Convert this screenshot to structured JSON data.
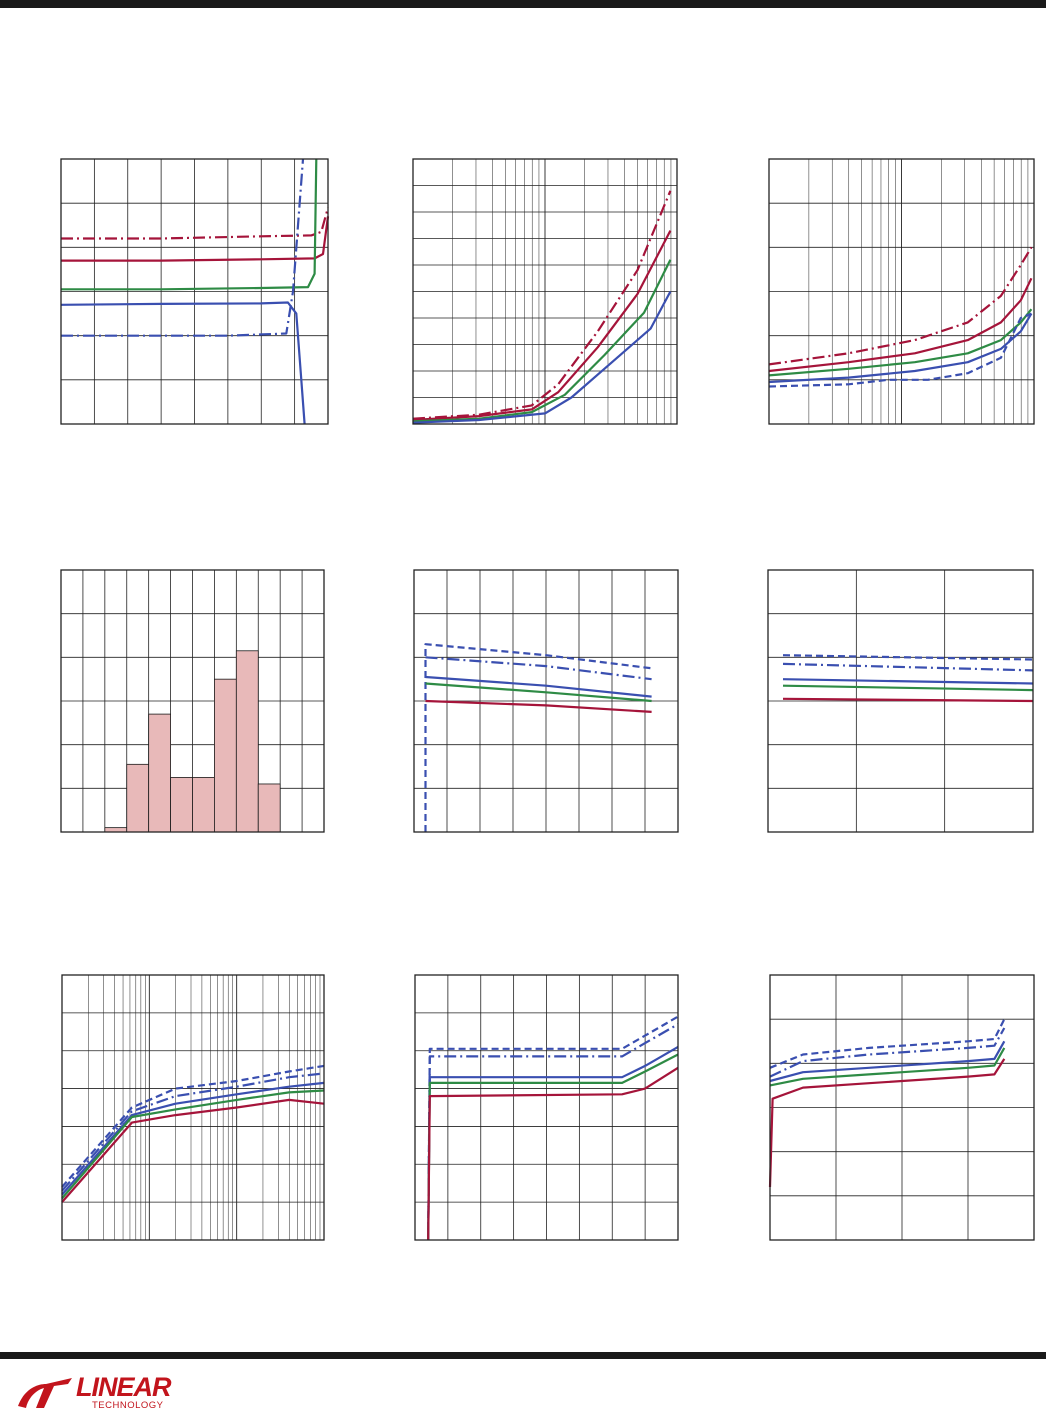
{
  "page": {
    "brand": {
      "name": "LINEAR",
      "subtitle": "TECHNOLOGY"
    }
  },
  "colors": {
    "red": "#a5143a",
    "green": "#2e8b45",
    "blue": "#3a4fb0",
    "grid": "#222222",
    "bar_fill": "#e8b9b9",
    "bar_edge": "#1a1a1a"
  },
  "chart_data": [
    {
      "type": "line",
      "grid": "linear",
      "xdivs": 8,
      "ydivs": 6,
      "series": [
        {
          "color": "red",
          "style": "dashdot",
          "points": [
            [
              0,
              4.2
            ],
            [
              3,
              4.2
            ],
            [
              6,
              4.25
            ],
            [
              7.5,
              4.27
            ],
            [
              7.8,
              4.35
            ],
            [
              8,
              4.9
            ]
          ]
        },
        {
          "color": "red",
          "style": "solid",
          "points": [
            [
              0,
              3.7
            ],
            [
              3,
              3.7
            ],
            [
              6,
              3.73
            ],
            [
              7.6,
              3.75
            ],
            [
              7.85,
              3.85
            ],
            [
              8,
              4.7
            ]
          ]
        },
        {
          "color": "green",
          "style": "solid",
          "points": [
            [
              0,
              3.05
            ],
            [
              3,
              3.05
            ],
            [
              6,
              3.08
            ],
            [
              7.4,
              3.1
            ],
            [
              7.6,
              3.4
            ],
            [
              7.65,
              6
            ]
          ]
        },
        {
          "color": "blue",
          "style": "solid",
          "points": [
            [
              0,
              2.7
            ],
            [
              3,
              2.72
            ],
            [
              6,
              2.73
            ],
            [
              6.8,
              2.75
            ],
            [
              7.05,
              2.5
            ],
            [
              7.2,
              1
            ],
            [
              7.3,
              0
            ]
          ]
        },
        {
          "color": "blue",
          "style": "dashdot",
          "points": [
            [
              0,
              2
            ],
            [
              3,
              2
            ],
            [
              5,
              2
            ],
            [
              6.75,
              2.05
            ],
            [
              6.95,
              3
            ],
            [
              7.1,
              4.5
            ],
            [
              7.25,
              6
            ]
          ]
        }
      ]
    },
    {
      "type": "line",
      "grid": "log",
      "decades": 2,
      "ydivs": 10,
      "series": [
        {
          "color": "red",
          "style": "dashdot",
          "points": [
            [
              0,
              0.2
            ],
            [
              0.5,
              0.35
            ],
            [
              0.9,
              0.7
            ],
            [
              1.1,
              1.5
            ],
            [
              1.4,
              3.5
            ],
            [
              1.7,
              5.8
            ],
            [
              1.95,
              8.8
            ]
          ]
        },
        {
          "color": "red",
          "style": "solid",
          "points": [
            [
              0,
              0.15
            ],
            [
              0.5,
              0.3
            ],
            [
              0.9,
              0.55
            ],
            [
              1.1,
              1.2
            ],
            [
              1.4,
              2.9
            ],
            [
              1.7,
              4.9
            ],
            [
              1.95,
              7.3
            ]
          ]
        },
        {
          "color": "green",
          "style": "solid",
          "points": [
            [
              0,
              0.1
            ],
            [
              0.5,
              0.2
            ],
            [
              0.9,
              0.45
            ],
            [
              1.15,
              1.1
            ],
            [
              1.45,
              2.6
            ],
            [
              1.75,
              4.2
            ],
            [
              1.95,
              6.2
            ]
          ]
        },
        {
          "color": "blue",
          "style": "solid",
          "points": [
            [
              0,
              0.05
            ],
            [
              0.5,
              0.15
            ],
            [
              1.0,
              0.4
            ],
            [
              1.2,
              1.0
            ],
            [
              1.5,
              2.3
            ],
            [
              1.8,
              3.6
            ],
            [
              1.95,
              5.0
            ]
          ]
        }
      ]
    },
    {
      "type": "line",
      "grid": "log",
      "decades": 2,
      "ydivs": 6,
      "series": [
        {
          "color": "red",
          "style": "dashdot",
          "points": [
            [
              0,
              1.35
            ],
            [
              0.6,
              1.6
            ],
            [
              1.1,
              1.9
            ],
            [
              1.5,
              2.3
            ],
            [
              1.75,
              2.9
            ],
            [
              1.9,
              3.6
            ],
            [
              1.98,
              4.0
            ]
          ]
        },
        {
          "color": "red",
          "style": "solid",
          "points": [
            [
              0,
              1.2
            ],
            [
              0.6,
              1.4
            ],
            [
              1.1,
              1.6
            ],
            [
              1.5,
              1.9
            ],
            [
              1.75,
              2.3
            ],
            [
              1.9,
              2.8
            ],
            [
              1.98,
              3.3
            ]
          ]
        },
        {
          "color": "green",
          "style": "solid",
          "points": [
            [
              0,
              1.1
            ],
            [
              0.6,
              1.25
            ],
            [
              1.1,
              1.4
            ],
            [
              1.5,
              1.6
            ],
            [
              1.75,
              1.9
            ],
            [
              1.9,
              2.3
            ],
            [
              1.98,
              2.6
            ]
          ]
        },
        {
          "color": "blue",
          "style": "solid",
          "points": [
            [
              0,
              0.95
            ],
            [
              0.6,
              1.05
            ],
            [
              1.1,
              1.2
            ],
            [
              1.5,
              1.4
            ],
            [
              1.75,
              1.7
            ],
            [
              1.9,
              2.1
            ],
            [
              1.98,
              2.5
            ]
          ]
        },
        {
          "color": "blue",
          "style": "dashed",
          "points": [
            [
              0,
              0.85
            ],
            [
              0.6,
              0.9
            ],
            [
              0.9,
              1.0
            ],
            [
              1.2,
              1.0
            ],
            [
              1.5,
              1.15
            ],
            [
              1.75,
              1.5
            ],
            [
              1.9,
              2.4
            ],
            [
              1.98,
              2.5
            ]
          ]
        }
      ]
    },
    {
      "type": "bar",
      "xdivs": 12,
      "ydivs": 6,
      "ymax": 6,
      "bars": [
        [
          2,
          0.1
        ],
        [
          3,
          1.55
        ],
        [
          4,
          2.7
        ],
        [
          5,
          1.25
        ],
        [
          6,
          1.25
        ],
        [
          7,
          3.5
        ],
        [
          8,
          4.15
        ],
        [
          9,
          1.1
        ]
      ]
    },
    {
      "type": "line",
      "grid": "linear",
      "xdivs": 8,
      "ydivs": 6,
      "series": [
        {
          "color": "blue",
          "style": "dashed",
          "points": [
            [
              0.35,
              0
            ],
            [
              0.35,
              4.3
            ],
            [
              4,
              4.05
            ],
            [
              7.2,
              3.75
            ]
          ]
        },
        {
          "color": "blue",
          "style": "dashdot",
          "points": [
            [
              0.35,
              4.0
            ],
            [
              4,
              3.8
            ],
            [
              7.2,
              3.5
            ]
          ]
        },
        {
          "color": "blue",
          "style": "solid",
          "points": [
            [
              0.35,
              3.55
            ],
            [
              4,
              3.35
            ],
            [
              7.2,
              3.1
            ]
          ]
        },
        {
          "color": "green",
          "style": "solid",
          "points": [
            [
              0.35,
              3.4
            ],
            [
              4,
              3.2
            ],
            [
              7.2,
              3.0
            ]
          ]
        },
        {
          "color": "red",
          "style": "solid",
          "points": [
            [
              0.35,
              3.0
            ],
            [
              4,
              2.9
            ],
            [
              7.2,
              2.75
            ]
          ]
        }
      ]
    },
    {
      "type": "line",
      "grid": "linear",
      "xdivs": 3,
      "ydivs": 6,
      "series": [
        {
          "color": "blue",
          "style": "dashed",
          "points": [
            [
              0.17,
              4.05
            ],
            [
              3,
              3.95
            ]
          ]
        },
        {
          "color": "blue",
          "style": "dashdot",
          "points": [
            [
              0.17,
              3.85
            ],
            [
              3,
              3.7
            ]
          ]
        },
        {
          "color": "blue",
          "style": "solid",
          "points": [
            [
              0.17,
              3.5
            ],
            [
              3,
              3.4
            ]
          ]
        },
        {
          "color": "green",
          "style": "solid",
          "points": [
            [
              0.17,
              3.35
            ],
            [
              3,
              3.25
            ]
          ]
        },
        {
          "color": "red",
          "style": "solid",
          "points": [
            [
              0.17,
              3.05
            ],
            [
              3,
              3.0
            ]
          ]
        }
      ]
    },
    {
      "type": "line",
      "grid": "log",
      "decades": 3,
      "ydivs": 7,
      "series": [
        {
          "color": "blue",
          "style": "dashed",
          "points": [
            [
              0,
              1.4
            ],
            [
              0.8,
              3.5
            ],
            [
              1.3,
              4.0
            ],
            [
              2,
              4.2
            ],
            [
              2.6,
              4.45
            ],
            [
              3,
              4.6
            ]
          ]
        },
        {
          "color": "blue",
          "style": "dashdot",
          "points": [
            [
              0,
              1.3
            ],
            [
              0.8,
              3.4
            ],
            [
              1.3,
              3.8
            ],
            [
              2,
              4.05
            ],
            [
              2.6,
              4.3
            ],
            [
              3,
              4.4
            ]
          ]
        },
        {
          "color": "blue",
          "style": "solid",
          "points": [
            [
              0,
              1.2
            ],
            [
              0.8,
              3.3
            ],
            [
              1.3,
              3.6
            ],
            [
              2,
              3.85
            ],
            [
              2.6,
              4.05
            ],
            [
              3,
              4.15
            ]
          ]
        },
        {
          "color": "green",
          "style": "solid",
          "points": [
            [
              0,
              1.1
            ],
            [
              0.8,
              3.25
            ],
            [
              1.3,
              3.45
            ],
            [
              2,
              3.7
            ],
            [
              2.6,
              3.9
            ],
            [
              3,
              3.95
            ]
          ]
        },
        {
          "color": "red",
          "style": "solid",
          "points": [
            [
              0,
              1.0
            ],
            [
              0.8,
              3.1
            ],
            [
              1.3,
              3.3
            ],
            [
              2,
              3.5
            ],
            [
              2.6,
              3.7
            ],
            [
              3,
              3.6
            ]
          ]
        }
      ]
    },
    {
      "type": "line",
      "grid": "linear",
      "xdivs": 8,
      "ydivs": 7,
      "series": [
        {
          "color": "blue",
          "style": "dashed",
          "points": [
            [
              0.4,
              0
            ],
            [
              0.45,
              5.05
            ],
            [
              6.3,
              5.05
            ],
            [
              7,
              5.4
            ],
            [
              8,
              5.9
            ]
          ]
        },
        {
          "color": "blue",
          "style": "dashdot",
          "points": [
            [
              0.4,
              0
            ],
            [
              0.45,
              4.85
            ],
            [
              6.3,
              4.85
            ],
            [
              7,
              5.2
            ],
            [
              8,
              5.7
            ]
          ]
        },
        {
          "color": "blue",
          "style": "solid",
          "points": [
            [
              0.4,
              0
            ],
            [
              0.45,
              4.3
            ],
            [
              6.3,
              4.3
            ],
            [
              7,
              4.6
            ],
            [
              8,
              5.1
            ]
          ]
        },
        {
          "color": "green",
          "style": "solid",
          "points": [
            [
              0.4,
              0
            ],
            [
              0.45,
              4.15
            ],
            [
              6.3,
              4.15
            ],
            [
              7,
              4.45
            ],
            [
              8,
              4.9
            ]
          ]
        },
        {
          "color": "red",
          "style": "solid",
          "points": [
            [
              0.4,
              0
            ],
            [
              0.45,
              3.8
            ],
            [
              6.3,
              3.85
            ],
            [
              7,
              4.0
            ],
            [
              8,
              4.55
            ]
          ]
        }
      ]
    },
    {
      "type": "line",
      "grid": "linear",
      "xdivs": 4,
      "ydivs": 6,
      "series": [
        {
          "color": "blue",
          "style": "dashed",
          "points": [
            [
              0,
              3.9
            ],
            [
              0.5,
              4.2
            ],
            [
              1.5,
              4.35
            ],
            [
              3,
              4.5
            ],
            [
              3.4,
              4.55
            ],
            [
              3.55,
              5.0
            ]
          ]
        },
        {
          "color": "blue",
          "style": "dashdot",
          "points": [
            [
              0,
              3.7
            ],
            [
              0.5,
              4.05
            ],
            [
              1.5,
              4.2
            ],
            [
              3,
              4.35
            ],
            [
              3.4,
              4.4
            ],
            [
              3.55,
              4.8
            ]
          ]
        },
        {
          "color": "blue",
          "style": "solid",
          "points": [
            [
              0,
              3.6
            ],
            [
              0.5,
              3.8
            ],
            [
              1.5,
              3.9
            ],
            [
              3,
              4.05
            ],
            [
              3.4,
              4.1
            ],
            [
              3.55,
              4.5
            ]
          ]
        },
        {
          "color": "green",
          "style": "solid",
          "points": [
            [
              0,
              3.5
            ],
            [
              0.5,
              3.65
            ],
            [
              1.5,
              3.75
            ],
            [
              3,
              3.9
            ],
            [
              3.4,
              3.95
            ],
            [
              3.55,
              4.35
            ]
          ]
        },
        {
          "color": "red",
          "style": "solid",
          "points": [
            [
              0,
              1.2
            ],
            [
              0.04,
              3.2
            ],
            [
              0.5,
              3.45
            ],
            [
              1.5,
              3.55
            ],
            [
              3,
              3.7
            ],
            [
              3.4,
              3.75
            ],
            [
              3.55,
              4.1
            ]
          ]
        }
      ]
    }
  ]
}
